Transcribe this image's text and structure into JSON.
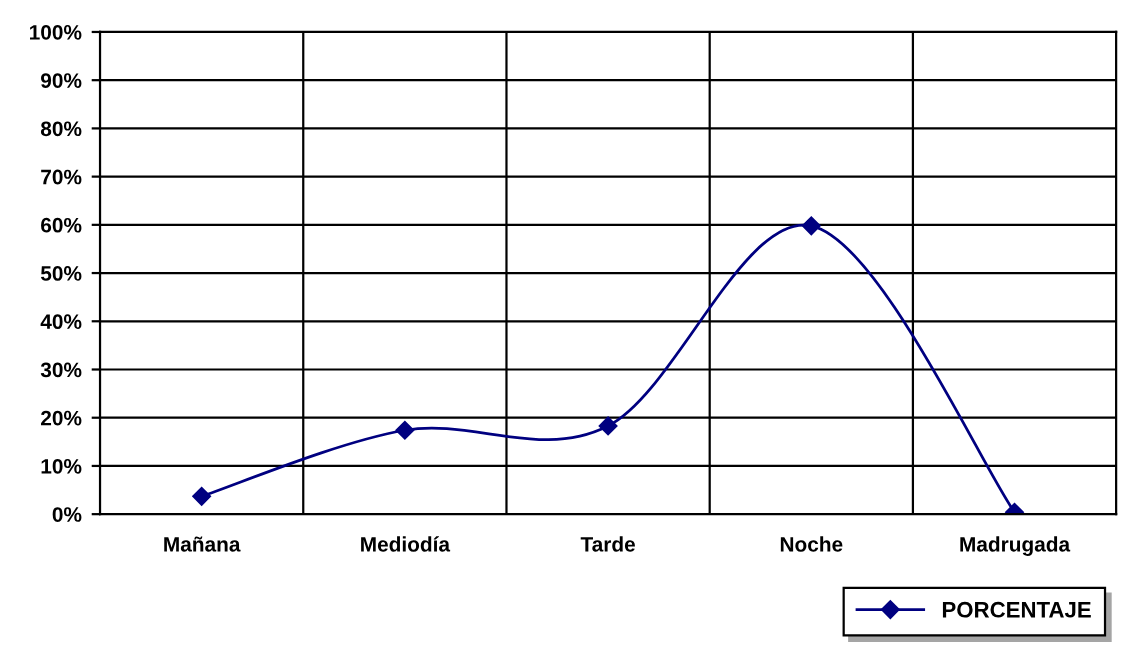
{
  "chart_data": {
    "type": "line",
    "categories": [
      "Mañana",
      "Mediodía",
      "Tarde",
      "Noche",
      "Madrugada"
    ],
    "series": [
      {
        "name": "PORCENTAJE",
        "color": "#000080",
        "values": [
          3.7,
          17.4,
          18.3,
          59.8,
          0.4
        ]
      }
    ],
    "ylim": [
      0,
      100
    ],
    "yticks": [
      {
        "value": 0,
        "label": "0%"
      },
      {
        "value": 10,
        "label": "10%"
      },
      {
        "value": 20,
        "label": "20%"
      },
      {
        "value": 30,
        "label": "30%"
      },
      {
        "value": 40,
        "label": "40%"
      },
      {
        "value": 50,
        "label": "50%"
      },
      {
        "value": 60,
        "label": "60%"
      },
      {
        "value": 70,
        "label": "70%"
      },
      {
        "value": 80,
        "label": "80%"
      },
      {
        "value": 90,
        "label": "90%"
      },
      {
        "value": 100,
        "label": "100%"
      }
    ],
    "grid": true,
    "legend": "bottom",
    "marker": "diamond",
    "line_style": "solid"
  }
}
